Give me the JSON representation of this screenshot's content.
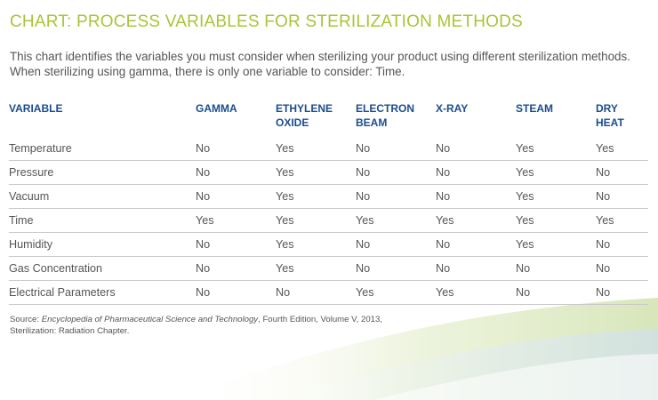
{
  "title": "CHART: PROCESS VARIABLES FOR STERILIZATION METHODS",
  "intro": [
    "This chart identifies the variables you must consider when sterilizing your product using different sterilization methods.",
    "When sterilizing using gamma, there is only one variable to consider: Time."
  ],
  "table": {
    "headers": [
      [
        "VARIABLE"
      ],
      [
        "GAMMA"
      ],
      [
        "ETHYLENE",
        "OXIDE"
      ],
      [
        "ELECTRON",
        "BEAM"
      ],
      [
        "X-RAY"
      ],
      [
        "STEAM"
      ],
      [
        "DRY HEAT"
      ]
    ],
    "rows": [
      [
        "Temperature",
        "No",
        "Yes",
        "No",
        "No",
        "Yes",
        "Yes"
      ],
      [
        "Pressure",
        "No",
        "Yes",
        "No",
        "No",
        "Yes",
        "No"
      ],
      [
        "Vacuum",
        "No",
        "Yes",
        "No",
        "No",
        "Yes",
        "No"
      ],
      [
        "Time",
        "Yes",
        "Yes",
        "Yes",
        "Yes",
        "Yes",
        "Yes"
      ],
      [
        "Humidity",
        "No",
        "Yes",
        "No",
        "No",
        "Yes",
        "No"
      ],
      [
        "Gas Concentration",
        "No",
        "Yes",
        "No",
        "No",
        "No",
        "No"
      ],
      [
        "Electrical Parameters",
        "No",
        "No",
        "Yes",
        "Yes",
        "No",
        "No"
      ]
    ]
  },
  "source": {
    "prefix": "Source: ",
    "publication": "Encyclopedia of Pharmaceutical Science and Technology",
    "suffix": ", Fourth Edition, Volume V, 2013,",
    "line2": "Sterilization: Radiation Chapter."
  },
  "colors": {
    "title": "#a8c536",
    "header": "#1a4d8f",
    "text": "#555555",
    "rule": "#c9c9c9"
  }
}
